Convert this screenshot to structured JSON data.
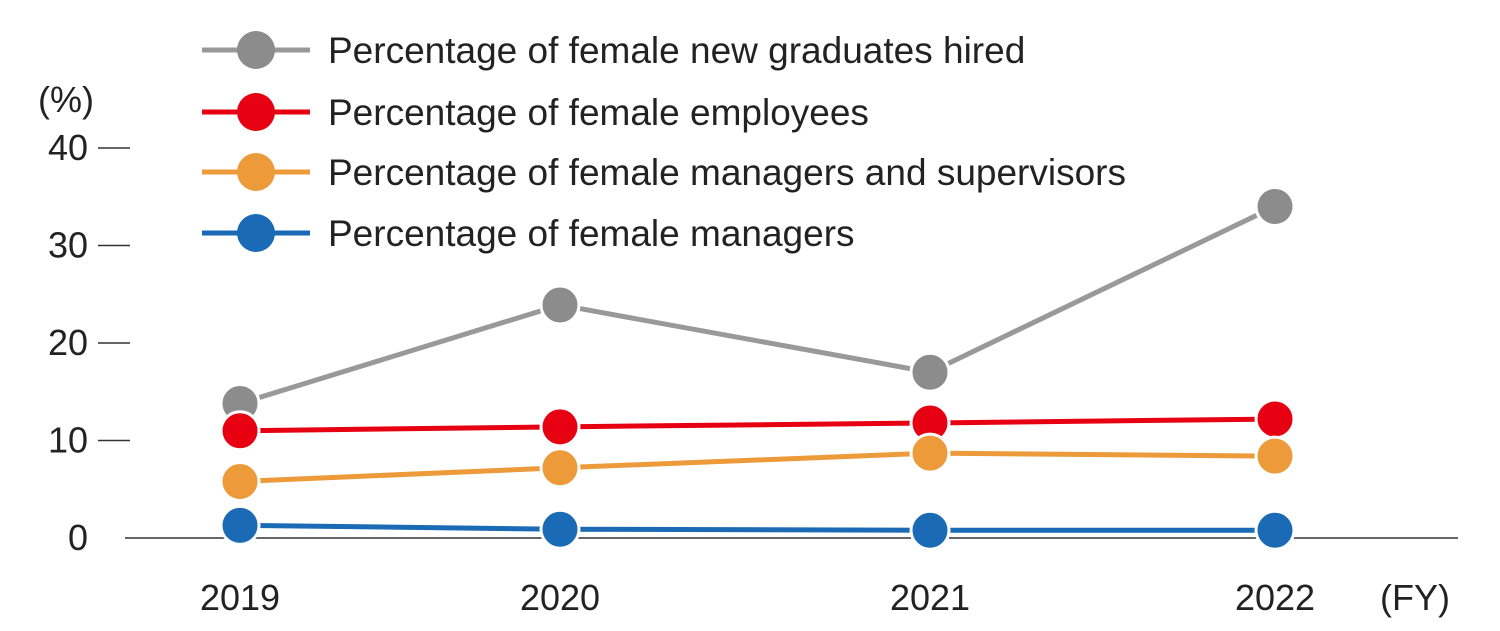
{
  "chart_data": {
    "type": "line",
    "ylabel": "(%)",
    "xlabel": "(FY)",
    "ylim": [
      0,
      40
    ],
    "yticks": [
      0,
      10,
      20,
      30,
      40
    ],
    "categories": [
      "2019",
      "2020",
      "2021",
      "2022"
    ],
    "legend_position": "top-center",
    "grid": false,
    "series": [
      {
        "name": "Percentage of female new graduates hired",
        "color": "#999999",
        "marker_color": "#8c8c8c",
        "values": [
          13.8,
          23.9,
          17.0,
          34.0
        ]
      },
      {
        "name": "Percentage of female employees",
        "color": "#e60012",
        "marker_color": "#e60012",
        "values": [
          11.0,
          11.4,
          11.8,
          12.2
        ]
      },
      {
        "name": "Percentage of female managers and supervisors",
        "color": "#ec9a3a",
        "marker_color": "#ec9a3a",
        "values": [
          5.8,
          7.2,
          8.7,
          8.4
        ]
      },
      {
        "name": "Percentage of female managers",
        "color": "#1a6ab5",
        "marker_color": "#1a6ab5",
        "values": [
          1.3,
          0.9,
          0.8,
          0.8
        ]
      }
    ]
  }
}
